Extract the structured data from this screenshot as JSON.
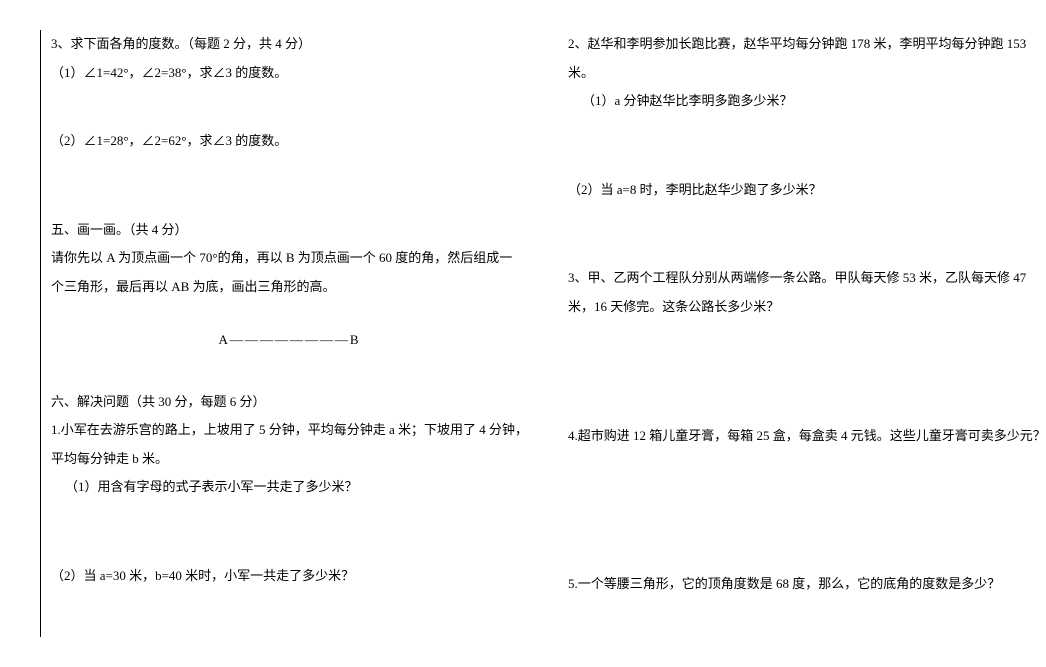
{
  "left": {
    "q3_title": "3、求下面各角的度数。（每题 2 分，共 4 分）",
    "q3_1": "（1）∠1=42°，∠2=38°，求∠3 的度数。",
    "q3_2": "（2）∠1=28°，∠2=62°，求∠3 的度数。",
    "sec5_title": "五、画一画。（共 4 分）",
    "sec5_line1": "请你先以 A 为顶点画一个 70°的角，再以 B 为顶点画一个 60 度的角，然后组成一",
    "sec5_line2": "个三角形，最后再以 AB 为底，画出三角形的高。",
    "ab_segment": "A————————B",
    "sec6_title": "六、解决问题（共 30 分，每题 6 分）",
    "q6_1_line1": "1.小军在去游乐宫的路上，上坡用了 5 分钟，平均每分钟走 a 米；下坡用了 4 分钟，",
    "q6_1_line2": "平均每分钟走 b 米。",
    "q6_1_sub1": "（1）用含有字母的式子表示小军一共走了多少米？",
    "q6_1_sub2": "（2）当 a=30 米，b=40 米时，小军一共走了多少米？"
  },
  "right": {
    "q2_line1": "2、赵华和李明参加长跑比赛，赵华平均每分钟跑 178 米，李明平均每分钟跑 153",
    "q2_line2": "米。",
    "q2_sub1": "（1）a 分钟赵华比李明多跑多少米？",
    "q2_sub2": "（2）当 a=8 时，李明比赵华少跑了多少米？",
    "q3_line1": "3、甲、乙两个工程队分别从两端修一条公路。甲队每天修 53 米，乙队每天修 47",
    "q3_line2": "米，16 天修完。这条公路长多少米？",
    "q4": "4.超市购进 12 箱儿童牙膏，每箱 25 盒，每盒卖 4 元钱。这些儿童牙膏可卖多少元？",
    "q5": "5.一个等腰三角形，它的顶角度数是 68 度，那么，它的底角的度数是多少？"
  }
}
